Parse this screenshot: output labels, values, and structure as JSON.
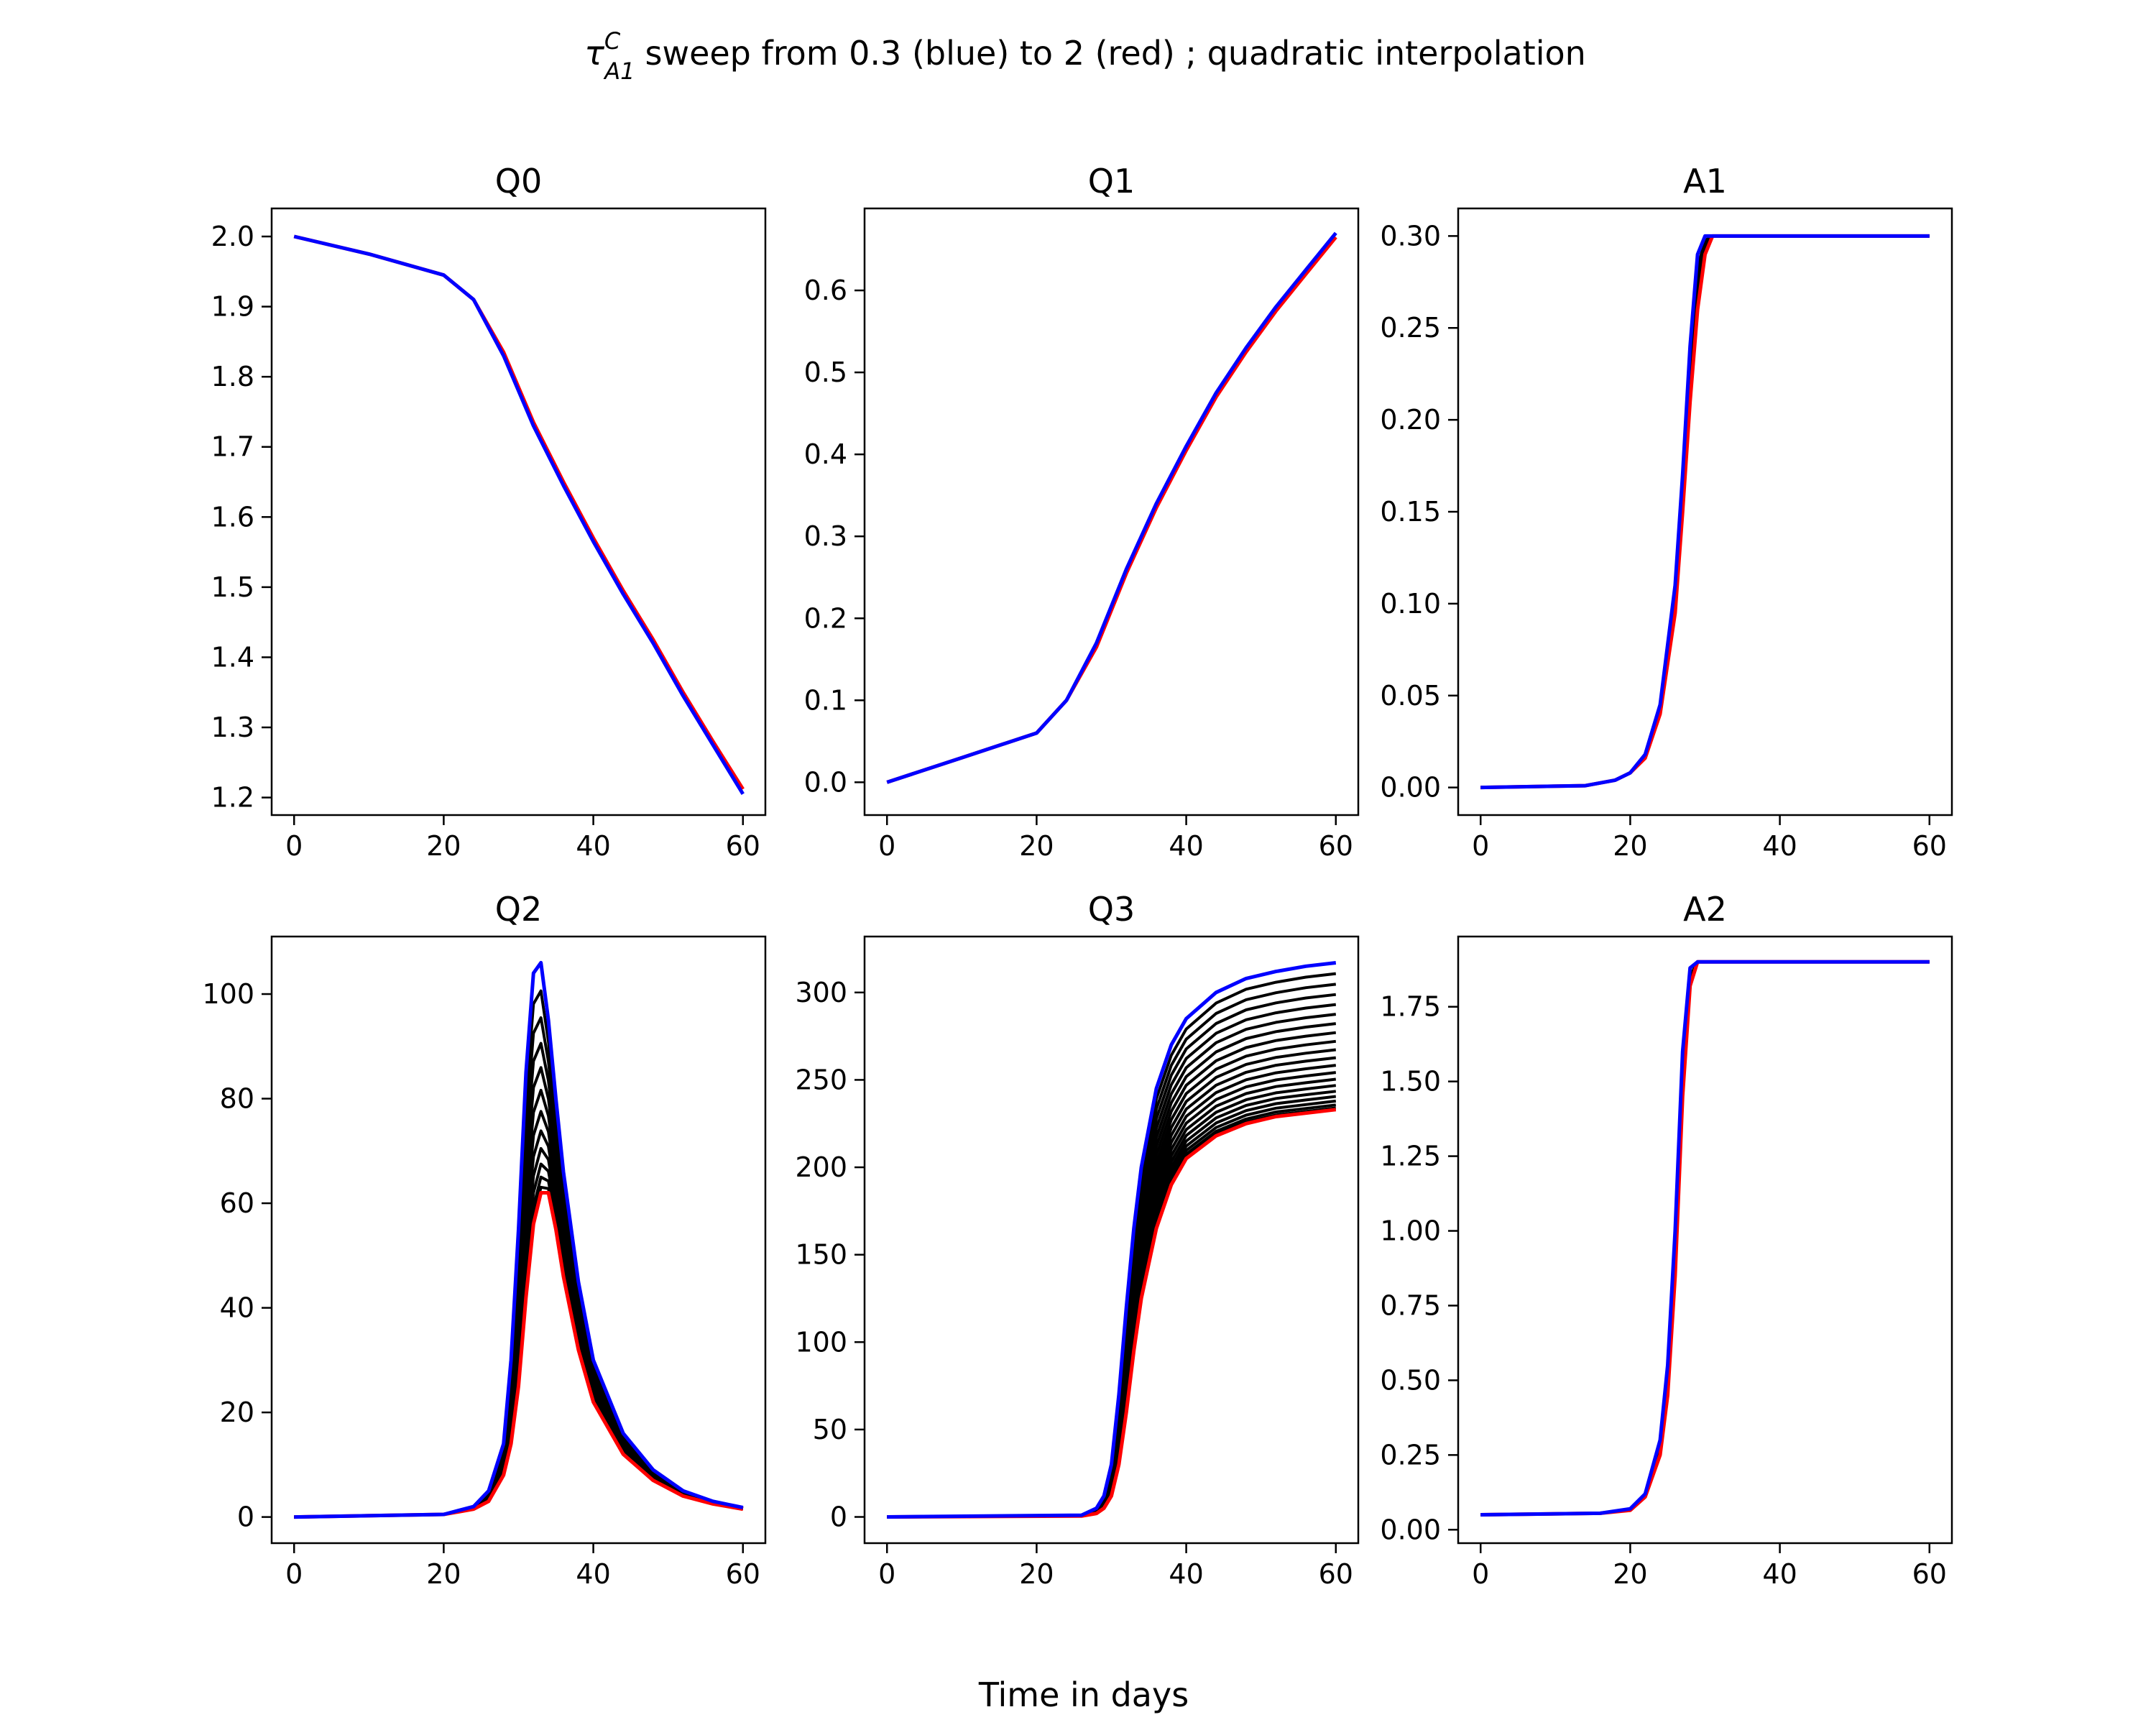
{
  "figure": {
    "title_main": "sweep from 0.3 (blue) to 2 (red) ; quadratic interpolation",
    "title_symbol": "τ",
    "title_sup": "C",
    "title_sub": "A1",
    "xlabel": "Time in days"
  },
  "colors": {
    "blue": "#0000ff",
    "red": "#ff0000",
    "black": "#000000"
  },
  "chart_data": [
    {
      "type": "line",
      "title": "Q0",
      "xlim": [
        -3,
        63
      ],
      "ylim": [
        1.175,
        2.04
      ],
      "xticks": [
        "0",
        "20",
        "40",
        "60"
      ],
      "yticks": [
        "1.2",
        "1.3",
        "1.4",
        "1.5",
        "1.6",
        "1.7",
        "1.8",
        "1.9",
        "2.0"
      ],
      "x": [
        0,
        10,
        20,
        24,
        28,
        32,
        36,
        40,
        44,
        48,
        52,
        56,
        60
      ],
      "series_blue": [
        2.0,
        1.975,
        1.945,
        1.91,
        1.83,
        1.73,
        1.645,
        1.565,
        1.49,
        1.42,
        1.345,
        1.275,
        1.205
      ],
      "series_red": [
        2.0,
        1.975,
        1.945,
        1.91,
        1.835,
        1.735,
        1.65,
        1.57,
        1.495,
        1.425,
        1.35,
        1.28,
        1.212
      ],
      "sweep": 1
    },
    {
      "type": "line",
      "title": "Q1",
      "xlim": [
        -3,
        63
      ],
      "ylim": [
        -0.04,
        0.7
      ],
      "xticks": [
        "0",
        "20",
        "40",
        "60"
      ],
      "yticks": [
        "0.0",
        "0.1",
        "0.2",
        "0.3",
        "0.4",
        "0.5",
        "0.6"
      ],
      "x": [
        0,
        10,
        20,
        24,
        28,
        32,
        36,
        40,
        44,
        48,
        52,
        56,
        60
      ],
      "series_blue": [
        0.0,
        0.03,
        0.06,
        0.1,
        0.17,
        0.26,
        0.34,
        0.41,
        0.475,
        0.53,
        0.58,
        0.625,
        0.67
      ],
      "series_red": [
        0.0,
        0.03,
        0.06,
        0.1,
        0.165,
        0.255,
        0.335,
        0.405,
        0.47,
        0.525,
        0.575,
        0.62,
        0.665
      ],
      "sweep": 1
    },
    {
      "type": "line",
      "title": "A1",
      "xlim": [
        -3,
        63
      ],
      "ylim": [
        -0.015,
        0.315
      ],
      "xticks": [
        "0",
        "20",
        "40",
        "60"
      ],
      "yticks": [
        "0.00",
        "0.05",
        "0.10",
        "0.15",
        "0.20",
        "0.25",
        "0.30"
      ],
      "x": [
        0,
        14,
        18,
        20,
        22,
        24,
        26,
        27,
        28,
        29,
        30,
        31,
        35,
        60
      ],
      "series_blue": [
        0.0,
        0.001,
        0.004,
        0.008,
        0.018,
        0.045,
        0.11,
        0.17,
        0.24,
        0.29,
        0.3,
        0.3,
        0.3,
        0.3
      ],
      "series_red": [
        0.0,
        0.001,
        0.004,
        0.008,
        0.016,
        0.04,
        0.095,
        0.15,
        0.21,
        0.26,
        0.29,
        0.3,
        0.3,
        0.3
      ],
      "sweep": 6
    },
    {
      "type": "line",
      "title": "Q2",
      "xlim": [
        -3,
        63
      ],
      "ylim": [
        -5,
        111
      ],
      "xticks": [
        "0",
        "20",
        "40",
        "60"
      ],
      "yticks": [
        "0",
        "20",
        "40",
        "60",
        "80",
        "100"
      ],
      "x": [
        0,
        20,
        24,
        26,
        28,
        29,
        30,
        31,
        32,
        33,
        34,
        35,
        36,
        38,
        40,
        44,
        48,
        52,
        56,
        60
      ],
      "series_blue": [
        0,
        0.5,
        2,
        5,
        14,
        30,
        55,
        85,
        104,
        106,
        95,
        80,
        66,
        45,
        30,
        16,
        9,
        5,
        3,
        1.8
      ],
      "series_red": [
        0,
        0.5,
        1.5,
        3,
        8,
        14,
        25,
        42,
        56,
        62,
        62,
        55,
        46,
        32,
        22,
        12,
        7,
        4,
        2.5,
        1.5
      ],
      "sweep": 12
    },
    {
      "type": "line",
      "title": "Q3",
      "xlim": [
        -3,
        63
      ],
      "ylim": [
        -15,
        332
      ],
      "xticks": [
        "0",
        "20",
        "40",
        "60"
      ],
      "yticks": [
        "0",
        "50",
        "100",
        "150",
        "200",
        "250",
        "300"
      ],
      "x": [
        0,
        26,
        28,
        29,
        30,
        31,
        32,
        33,
        34,
        36,
        38,
        40,
        44,
        48,
        52,
        56,
        60
      ],
      "series_blue": [
        0,
        1,
        5,
        12,
        30,
        70,
        120,
        165,
        200,
        245,
        270,
        285,
        300,
        308,
        312,
        315,
        317
      ],
      "series_red": [
        0,
        0.5,
        2,
        5,
        12,
        30,
        60,
        95,
        125,
        165,
        190,
        205,
        218,
        225,
        229,
        231,
        233
      ],
      "sweep": 20
    },
    {
      "type": "line",
      "title": "A2",
      "xlim": [
        -3,
        63
      ],
      "ylim": [
        -0.045,
        1.985
      ],
      "xticks": [
        "0",
        "20",
        "40",
        "60"
      ],
      "yticks": [
        "0.00",
        "0.25",
        "0.50",
        "0.75",
        "1.00",
        "1.25",
        "1.50",
        "1.75"
      ],
      "x": [
        0,
        16,
        20,
        22,
        24,
        25,
        26,
        27,
        28,
        29,
        30,
        60
      ],
      "series_blue": [
        0.05,
        0.055,
        0.07,
        0.12,
        0.3,
        0.55,
        1.0,
        1.6,
        1.88,
        1.9,
        1.9,
        1.9
      ],
      "series_red": [
        0.05,
        0.055,
        0.065,
        0.11,
        0.25,
        0.45,
        0.85,
        1.45,
        1.82,
        1.9,
        1.9,
        1.9
      ],
      "sweep": 3
    }
  ]
}
